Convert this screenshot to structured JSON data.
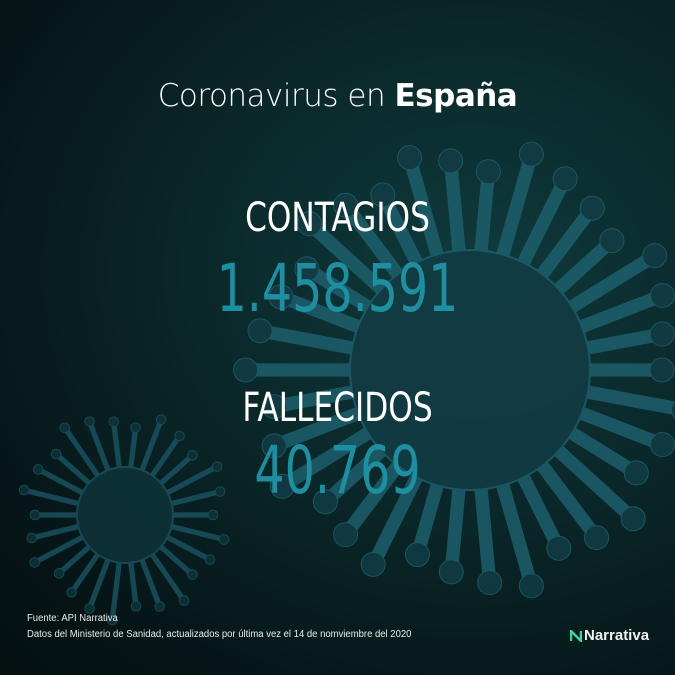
{
  "title": {
    "prefix": "Coronavirus en",
    "country": "España"
  },
  "stats": [
    {
      "label": "CONTAGIOS",
      "value": "1.458.591"
    },
    {
      "label": "FALLECIDOS",
      "value": "40.769"
    }
  ],
  "footer": {
    "source": "Fuente: API Narrativa",
    "note": "Datos del Ministerio de Sanidad, actualizados por última vez el  14 de nomviembre del 2020"
  },
  "logo": {
    "text": "Narrativa",
    "icon": "narrativa-n-icon"
  },
  "colors": {
    "number": "#1e8ea0",
    "background": "#0a2628"
  }
}
